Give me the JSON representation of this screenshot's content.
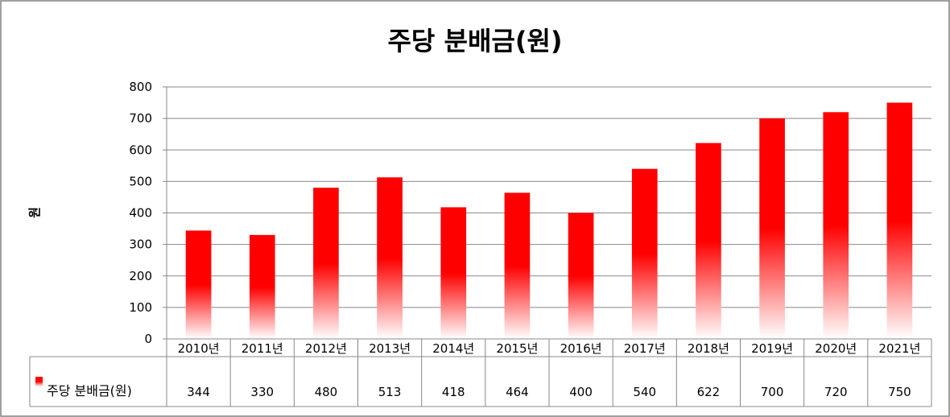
{
  "chart_data": {
    "type": "bar",
    "title": "주당 분배금(원)",
    "ylabel": "원",
    "xlabel": "",
    "ylim": [
      0,
      800
    ],
    "yticks": [
      0,
      100,
      200,
      300,
      400,
      500,
      600,
      700,
      800
    ],
    "categories": [
      "2010년",
      "2011년",
      "2012년",
      "2013년",
      "2014년",
      "2015년",
      "2016년",
      "2017년",
      "2018년",
      "2019년",
      "2020년",
      "2021년"
    ],
    "series": [
      {
        "name": "주당 분배금(원)",
        "values": [
          344,
          330,
          480,
          513,
          418,
          464,
          400,
          540,
          622,
          700,
          720,
          750
        ]
      }
    ],
    "grid": true,
    "legend": "data-table-left",
    "data_table": true,
    "colors": {
      "bar": "#ff0000",
      "bar_fade": "#ffffff",
      "grid": "#888888",
      "border": "#808080"
    }
  }
}
